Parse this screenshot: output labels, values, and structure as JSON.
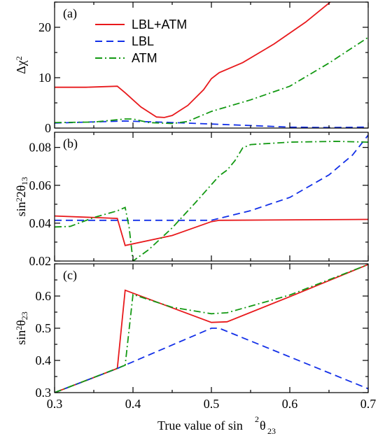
{
  "chart_data": {
    "type": "line",
    "xlabel": {
      "text": "True value of sin",
      "sup": "2",
      "theta": "θ",
      "sub": "23"
    },
    "xlim": [
      0.3,
      0.7
    ],
    "x_ticks": [
      "0.3",
      "0.4",
      "0.5",
      "0.6",
      "0.7"
    ],
    "x_tick_values": [
      0.3,
      0.4,
      0.5,
      0.6,
      0.7
    ],
    "colors": {
      "LBL+ATM": "#e8191c",
      "LBL": "#1330e8",
      "ATM": "#139913"
    },
    "legend": {
      "placement": "top-left (panel a)",
      "entries": [
        {
          "name": "LBL+ATM",
          "style": "solid",
          "color": "#e8191c"
        },
        {
          "name": "LBL",
          "style": "dashed",
          "color": "#1330e8"
        },
        {
          "name": "ATM",
          "style": "dashdot",
          "color": "#139913"
        }
      ]
    },
    "panels": [
      {
        "label": "(a)",
        "ylabel": {
          "text": "Δχ",
          "sup": "2"
        },
        "ylim": [
          0,
          25
        ],
        "y_ticks": [
          "0",
          "10",
          "20"
        ],
        "y_tick_values": [
          0,
          10,
          20
        ],
        "series": [
          {
            "name": "LBL+ATM",
            "points": [
              [
                0.3,
                8.1
              ],
              [
                0.34,
                8.1
              ],
              [
                0.38,
                8.3
              ],
              [
                0.39,
                7.0
              ],
              [
                0.41,
                4.2
              ],
              [
                0.43,
                2.2
              ],
              [
                0.44,
                2.1
              ],
              [
                0.45,
                2.5
              ],
              [
                0.47,
                4.5
              ],
              [
                0.49,
                7.6
              ],
              [
                0.5,
                9.8
              ],
              [
                0.51,
                11.0
              ],
              [
                0.54,
                13.0
              ],
              [
                0.58,
                16.7
              ],
              [
                0.62,
                21.0
              ],
              [
                0.65,
                24.8
              ],
              [
                0.66,
                26.2
              ]
            ]
          },
          {
            "name": "LBL",
            "points": [
              [
                0.3,
                1.0
              ],
              [
                0.39,
                1.4
              ],
              [
                0.45,
                1.1
              ],
              [
                0.5,
                0.8
              ],
              [
                0.55,
                0.5
              ],
              [
                0.6,
                0.2
              ],
              [
                0.65,
                0.1
              ],
              [
                0.7,
                0.2
              ]
            ]
          },
          {
            "name": "ATM",
            "points": [
              [
                0.3,
                1.1
              ],
              [
                0.35,
                1.2
              ],
              [
                0.39,
                1.8
              ],
              [
                0.4,
                1.8
              ],
              [
                0.42,
                1.1
              ],
              [
                0.45,
                0.9
              ],
              [
                0.47,
                1.3
              ],
              [
                0.48,
                2.0
              ],
              [
                0.5,
                3.3
              ],
              [
                0.55,
                5.6
              ],
              [
                0.6,
                8.3
              ],
              [
                0.65,
                12.9
              ],
              [
                0.7,
                18.0
              ]
            ]
          }
        ]
      },
      {
        "label": "(b)",
        "ylabel": {
          "text": "sin",
          "sup": "2",
          "two": "2θ",
          "sub": "13"
        },
        "ylim": [
          0.02,
          0.088
        ],
        "y_ticks": [
          "0.02",
          "0.04",
          "0.06",
          "0.08"
        ],
        "y_tick_values": [
          0.02,
          0.04,
          0.06,
          0.08
        ],
        "series": [
          {
            "name": "LBL+ATM",
            "points": [
              [
                0.3,
                0.0438
              ],
              [
                0.38,
                0.0425
              ],
              [
                0.39,
                0.0282
              ],
              [
                0.45,
                0.0335
              ],
              [
                0.5,
                0.0408
              ],
              [
                0.51,
                0.0415
              ],
              [
                0.7,
                0.042
              ]
            ]
          },
          {
            "name": "LBL",
            "points": [
              [
                0.3,
                0.0415
              ],
              [
                0.5,
                0.0415
              ],
              [
                0.55,
                0.0466
              ],
              [
                0.6,
                0.0536
              ],
              [
                0.65,
                0.0655
              ],
              [
                0.68,
                0.076
              ],
              [
                0.7,
                0.0865
              ]
            ]
          },
          {
            "name": "ATM",
            "points": [
              [
                0.3,
                0.038
              ],
              [
                0.32,
                0.0383
              ],
              [
                0.35,
                0.043
              ],
              [
                0.38,
                0.0465
              ],
              [
                0.39,
                0.0483
              ],
              [
                0.395,
                0.038
              ],
              [
                0.4,
                0.02
              ],
              [
                0.42,
                0.026
              ],
              [
                0.45,
                0.0375
              ],
              [
                0.48,
                0.051
              ],
              [
                0.51,
                0.065
              ],
              [
                0.52,
                0.068
              ],
              [
                0.53,
                0.073
              ],
              [
                0.54,
                0.0798
              ],
              [
                0.55,
                0.0815
              ],
              [
                0.6,
                0.0828
              ],
              [
                0.66,
                0.0832
              ],
              [
                0.7,
                0.0828
              ]
            ]
          }
        ]
      },
      {
        "label": "(c)",
        "ylabel": {
          "text": "sin",
          "sup": "2",
          "theta": "θ",
          "sub": "23"
        },
        "ylim": [
          0.3,
          0.7
        ],
        "y_ticks": [
          "0.3",
          "0.4",
          "0.5",
          "0.6"
        ],
        "y_tick_values": [
          0.3,
          0.4,
          0.5,
          0.6
        ],
        "series": [
          {
            "name": "LBL+ATM",
            "points": [
              [
                0.3,
                0.3
              ],
              [
                0.38,
                0.375
              ],
              [
                0.39,
                0.618
              ],
              [
                0.5,
                0.518
              ],
              [
                0.52,
                0.52
              ],
              [
                0.6,
                0.598
              ],
              [
                0.7,
                0.698
              ]
            ]
          },
          {
            "name": "LBL",
            "points": [
              [
                0.3,
                0.3
              ],
              [
                0.38,
                0.375
              ],
              [
                0.5,
                0.5
              ],
              [
                0.51,
                0.5
              ],
              [
                0.7,
                0.312
              ]
            ]
          },
          {
            "name": "ATM",
            "points": [
              [
                0.3,
                0.3
              ],
              [
                0.39,
                0.385
              ],
              [
                0.4,
                0.605
              ],
              [
                0.45,
                0.565
              ],
              [
                0.5,
                0.545
              ],
              [
                0.52,
                0.548
              ],
              [
                0.6,
                0.603
              ],
              [
                0.7,
                0.698
              ]
            ]
          }
        ]
      }
    ]
  }
}
